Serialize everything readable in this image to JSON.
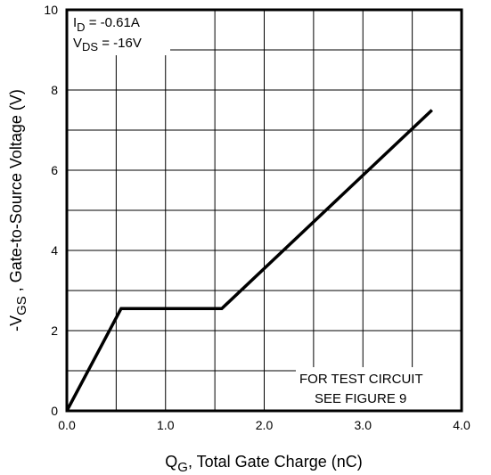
{
  "chart_data": {
    "type": "line",
    "x_axis": {
      "main": "Q",
      "sub": "G",
      "rest": ", Total Gate Charge (nC)",
      "range": [
        0.0,
        4.0
      ],
      "ticks": [
        "0.0",
        "1.0",
        "2.0",
        "3.0",
        "4.0"
      ],
      "tick_values": [
        0,
        1,
        2,
        3,
        4
      ],
      "minor_step": 0.5
    },
    "y_axis": {
      "main": "-V",
      "sub": "GS",
      "rest": " , Gate-to-Source Voltage (V)",
      "range": [
        0,
        10
      ],
      "ticks": [
        "0",
        "2",
        "4",
        "6",
        "8",
        "10"
      ],
      "tick_values": [
        0,
        2,
        4,
        6,
        8,
        10
      ],
      "minor_step": 1
    },
    "grid": true,
    "series": [
      {
        "x": [
          0.0,
          0.55,
          1.57,
          3.7
        ],
        "y": [
          0.0,
          2.55,
          2.55,
          7.5
        ]
      }
    ],
    "annotations": {
      "id_main": "I",
      "id_sub": "D",
      "id_rest": " = -0.61A",
      "vds_main": "V",
      "vds_sub": "DS",
      "vds_rest": " = -16V",
      "test_line1": "FOR TEST CIRCUIT",
      "test_line2": "SEE FIGURE 9"
    }
  }
}
